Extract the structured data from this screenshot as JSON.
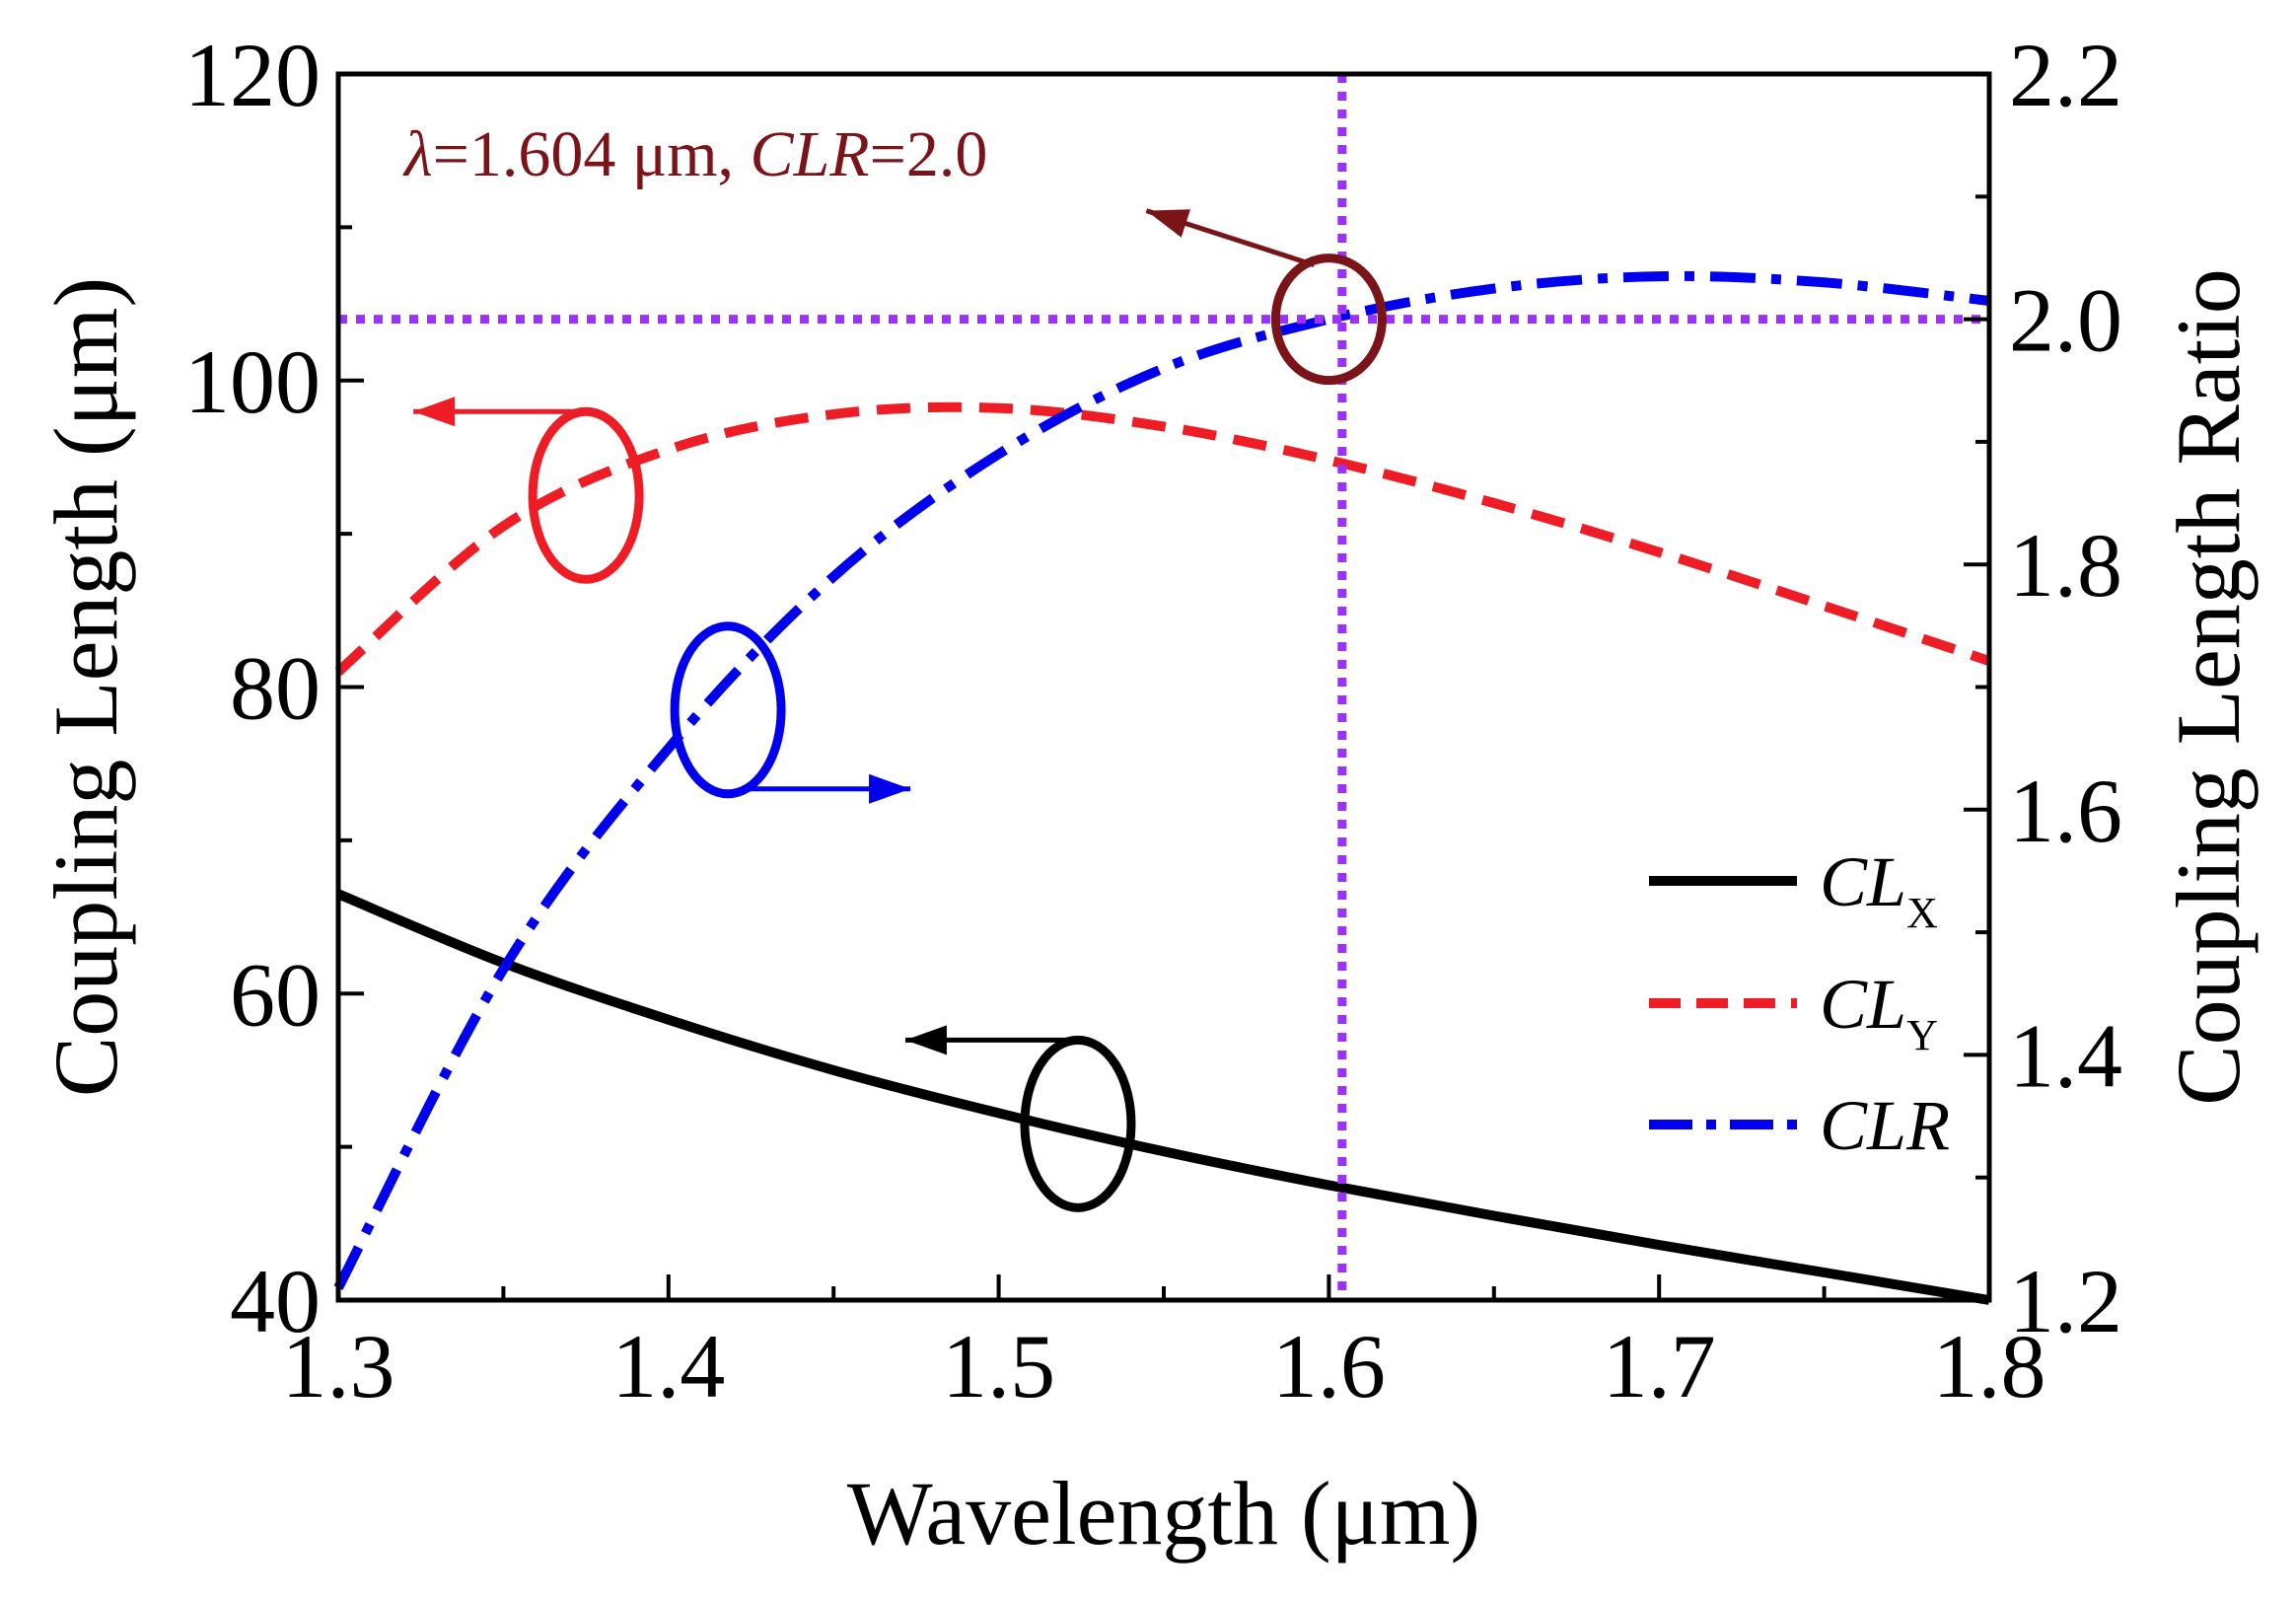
{
  "chart_data": {
    "type": "line",
    "xlabel": "Wavelength (μm)",
    "ylabel_left": "Coupling Length (μm)",
    "ylabel_right": "Coupling Length Ratio",
    "xlim": [
      1.3,
      1.8
    ],
    "ylim_left": [
      40,
      120
    ],
    "ylim_right": [
      1.2,
      2.2
    ],
    "x_ticks": [
      "1.3",
      "1.4",
      "1.5",
      "1.6",
      "1.7",
      "1.8"
    ],
    "y_left_ticks": [
      "40",
      "60",
      "80",
      "100",
      "120"
    ],
    "y_right_ticks": [
      "1.2",
      "1.4",
      "1.6",
      "1.8",
      "2.0",
      "2.2"
    ],
    "legend_position": "center-right",
    "grid": false,
    "series": [
      {
        "name": "CL",
        "name_sub": "X",
        "axis": "left",
        "color": "#000000",
        "style": "solid",
        "x": [
          1.3,
          1.35,
          1.4,
          1.45,
          1.5,
          1.55,
          1.6,
          1.65,
          1.7,
          1.75,
          1.8
        ],
        "y": [
          66.5,
          62.0,
          58.3,
          55.0,
          52.2,
          49.7,
          47.5,
          45.5,
          43.6,
          41.8,
          40.0
        ]
      },
      {
        "name": "CL",
        "name_sub": "Y",
        "axis": "left",
        "color": "#ee1c24",
        "style": "dashed",
        "x": [
          1.3,
          1.35,
          1.4,
          1.45,
          1.5,
          1.55,
          1.6,
          1.65,
          1.7,
          1.75,
          1.8
        ],
        "y": [
          81.0,
          90.5,
          95.5,
          97.8,
          98.2,
          97.0,
          94.8,
          92.0,
          88.8,
          85.3,
          81.7
        ]
      },
      {
        "name": "CLR",
        "name_sub": "",
        "axis": "right",
        "color": "#0000ee",
        "style": "dashdot",
        "x": [
          1.3,
          1.35,
          1.4,
          1.45,
          1.5,
          1.55,
          1.6,
          1.65,
          1.7,
          1.75,
          1.8
        ],
        "y": [
          1.21,
          1.47,
          1.65,
          1.79,
          1.89,
          1.96,
          2.0,
          2.025,
          2.035,
          2.03,
          2.015
        ]
      }
    ],
    "reference_lines": {
      "color": "#9b30ff",
      "vertical_x": 1.604,
      "horizontal_y_right": 2.0
    },
    "annotation": {
      "lambda_symbol": "λ",
      "lambda_value": "=1.604 μm, ",
      "clr_symbol": "CLR",
      "clr_value": "=2.0",
      "color": "#7a1418"
    },
    "axis_markers": [
      {
        "series": "CL_X",
        "color": "#000000",
        "cx": 1.524,
        "cy": 51.5,
        "direction": "left"
      },
      {
        "series": "CL_Y",
        "color": "#ee1c24",
        "cx": 1.375,
        "cy": 92.5,
        "direction": "left"
      },
      {
        "series": "CLR",
        "color": "#0000ee",
        "cx": 1.418,
        "cy": 78.5,
        "direction": "right"
      },
      {
        "series": "point",
        "color": "#7a1418",
        "cx": 1.6,
        "cy": 104.0,
        "direction": "left"
      }
    ]
  }
}
